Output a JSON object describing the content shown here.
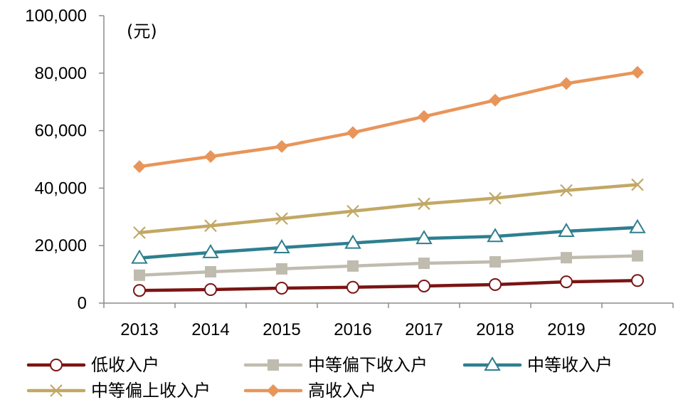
{
  "chart_data": {
    "type": "line",
    "unit_label": "(元)",
    "x": [
      "2013",
      "2014",
      "2015",
      "2016",
      "2017",
      "2018",
      "2019",
      "2020"
    ],
    "y_ticks": [
      "0",
      "20,000",
      "40,000",
      "60,000",
      "80,000",
      "100,000"
    ],
    "ylim": [
      0,
      100000
    ],
    "grid": false,
    "legend_position": "bottom",
    "series": [
      {
        "name": "低收入户",
        "color": "#7b1414",
        "marker": "circle-open",
        "values": [
          4400,
          4700,
          5200,
          5500,
          5950,
          6450,
          7400,
          7850
        ]
      },
      {
        "name": "中等偏下收入户",
        "color": "#bfbcaf",
        "marker": "square",
        "values": [
          9700,
          10900,
          11900,
          12900,
          13850,
          14350,
          15800,
          16450
        ]
      },
      {
        "name": "中等收入户",
        "color": "#2e7f8f",
        "marker": "triangle-open",
        "values": [
          15700,
          17600,
          19300,
          20900,
          22500,
          23200,
          25000,
          26300
        ]
      },
      {
        "name": "中等偏上收入户",
        "color": "#c2a865",
        "marker": "cross",
        "values": [
          24500,
          26900,
          29400,
          31990,
          34550,
          36500,
          39200,
          41200
        ]
      },
      {
        "name": "高收入户",
        "color": "#e8955a",
        "marker": "diamond",
        "values": [
          47500,
          51000,
          54500,
          59300,
          64900,
          70600,
          76400,
          80300
        ]
      }
    ]
  }
}
